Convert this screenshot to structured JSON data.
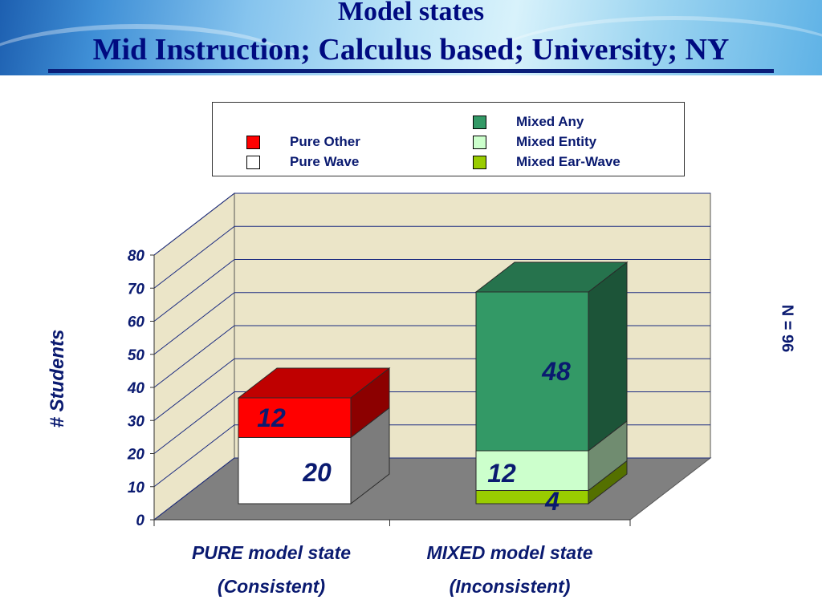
{
  "header": {
    "title": "Model states",
    "subtitle": "Mid Instruction; Calculus based; University; NY"
  },
  "side_note": "N = 96",
  "colors": {
    "mixed_any": "#339966",
    "mixed_entity": "#ccffcc",
    "mixed_ear_wave": "#99cc00",
    "pure_other": "#ff0000",
    "pure_wave": "#ffffff",
    "wall": "#ebe5c8",
    "floor": "#808080",
    "label_text": "#0a1a70"
  },
  "chart_data": {
    "type": "bar",
    "stacked": true,
    "three_d": true,
    "ylabel": "# Students",
    "ylim": [
      0,
      80
    ],
    "yticks": [
      "0",
      "10",
      "20",
      "30",
      "40",
      "50",
      "60",
      "70",
      "80"
    ],
    "grid": true,
    "legend_position": "top",
    "categories": [
      {
        "line1": "PURE model state",
        "line2": "(Consistent)"
      },
      {
        "line1": "MIXED model state",
        "line2": "(Inconsistent)"
      }
    ],
    "legend": [
      {
        "name": "Mixed Any",
        "color": "#339966"
      },
      {
        "name": "Pure Other",
        "color": "#ff0000"
      },
      {
        "name": "Mixed Entity",
        "color": "#ccffcc"
      },
      {
        "name": "Pure Wave",
        "color": "#ffffff"
      },
      {
        "name": "Mixed Ear-Wave",
        "color": "#99cc00"
      }
    ],
    "series": [
      {
        "name": "Pure Wave",
        "color": "#ffffff",
        "values": [
          20,
          0
        ],
        "labels": [
          "20",
          ""
        ]
      },
      {
        "name": "Pure Other",
        "color": "#ff0000",
        "values": [
          12,
          0
        ],
        "labels": [
          "12",
          ""
        ]
      },
      {
        "name": "Mixed Ear-Wave",
        "color": "#99cc00",
        "values": [
          0,
          4
        ],
        "labels": [
          "",
          "4"
        ]
      },
      {
        "name": "Mixed Entity",
        "color": "#ccffcc",
        "values": [
          0,
          12
        ],
        "labels": [
          "",
          "12"
        ]
      },
      {
        "name": "Mixed Any",
        "color": "#339966",
        "values": [
          0,
          48
        ],
        "labels": [
          "",
          "48"
        ]
      }
    ]
  }
}
